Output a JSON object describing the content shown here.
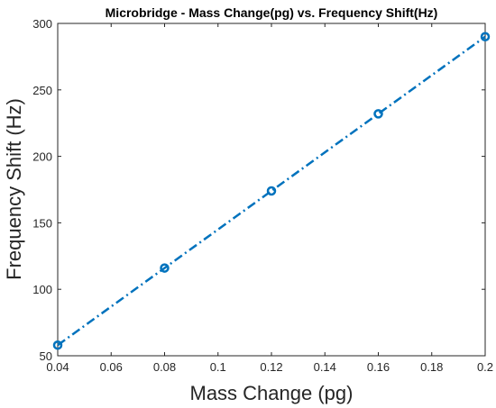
{
  "chart_data": {
    "type": "line",
    "title": "Microbridge - Mass Change(pg) vs. Frequency Shift(Hz)",
    "xlabel": "Mass Change (pg)",
    "ylabel": "Frequency Shift (Hz)",
    "xlim": [
      0.04,
      0.2
    ],
    "ylim": [
      50,
      300
    ],
    "x_ticks": [
      0.04,
      0.06,
      0.08,
      0.1,
      0.12,
      0.14,
      0.16,
      0.18,
      0.2
    ],
    "x_tick_labels": [
      "0.04",
      "0.06",
      "0.08",
      "0.1",
      "0.12",
      "0.14",
      "0.16",
      "0.18",
      "0.2"
    ],
    "y_ticks": [
      50,
      100,
      150,
      200,
      250,
      300
    ],
    "y_tick_labels": [
      "50",
      "100",
      "150",
      "200",
      "250",
      "300"
    ],
    "grid": false,
    "series": [
      {
        "x": [
          0.04,
          0.08,
          0.12,
          0.16,
          0.2
        ],
        "y": [
          58,
          116,
          174,
          232,
          290
        ],
        "color": "#0072BD",
        "line_style": "dash-dot",
        "marker": "circle"
      }
    ]
  }
}
